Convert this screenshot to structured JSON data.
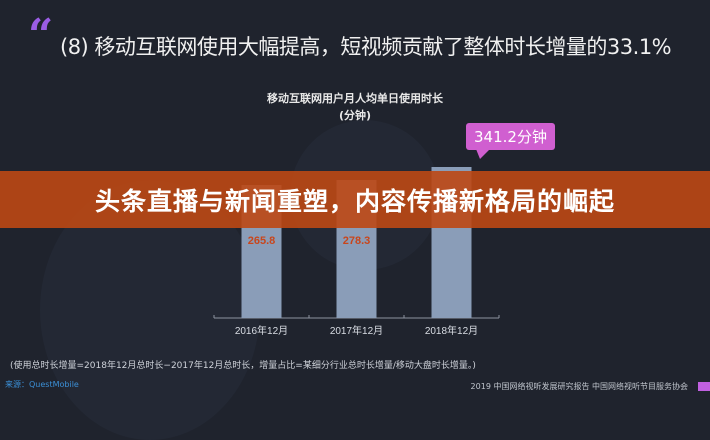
{
  "header": {
    "quote_mark": "“",
    "headline": "(8) 移动互联网使用大幅提高，短视频贡献了整体时长增量的33.1%"
  },
  "chart_data": {
    "type": "bar",
    "title": "移动互联网用户月人均单日使用时长",
    "subtitle": "(分钟)",
    "categories": [
      "2016年12月",
      "2017年12月",
      "2018年12月"
    ],
    "values": [
      265.8,
      278.3,
      341.2
    ],
    "data_labels": [
      "265.8",
      "278.3",
      "341.2分钟"
    ],
    "bar_color": "#8a9db8",
    "highlight_color": "#d05fd0",
    "grid": false
  },
  "banner": {
    "text": "头条直播与新闻重塑，内容传播新格局的崛起",
    "color": "#bc4814"
  },
  "footer": {
    "note": "(使用总时长增量=2018年12月总时长−2017年12月总时长，增量占比=某细分行业总时长增量/移动大盘时长增量。)",
    "source": "来源：QuestMobile",
    "credit": "2019 中国网络视听发展研究报告 中国网络视听节目服务协会"
  }
}
